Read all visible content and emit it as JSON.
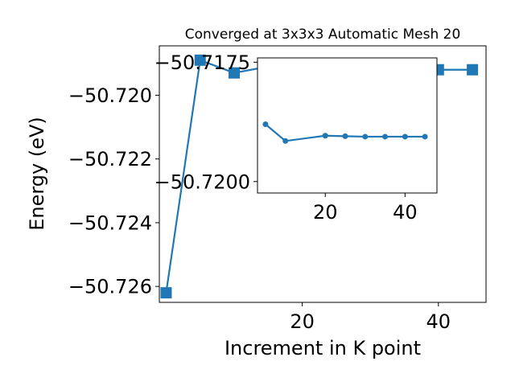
{
  "chart_data": [
    {
      "type": "line",
      "title": "Converged at 3x3x3 Automatic Mesh 20",
      "xlabel": "Increment in K point",
      "ylabel": "Energy (eV)",
      "x": [
        0,
        5,
        10,
        15,
        20,
        25,
        30,
        35,
        40,
        45
      ],
      "series": [
        {
          "values": [
            -50.7262,
            -50.7189,
            -50.7193,
            -50.7191,
            -50.7192,
            -50.7192,
            -50.7192,
            -50.7192,
            -50.7192,
            -50.7192
          ]
        }
      ],
      "xlim": [
        -1,
        47
      ],
      "ylim": [
        -50.7265,
        -50.71845
      ],
      "xticks": [
        20,
        40
      ],
      "xtick_labels": [
        "20",
        "40"
      ],
      "yticks": [
        -50.72,
        -50.722,
        -50.724,
        -50.726
      ],
      "ytick_labels": [
        "−50.720",
        "−50.722",
        "−50.724",
        "−50.726"
      ],
      "marker": "square",
      "color": "#1f77b4",
      "grid": false
    },
    {
      "type": "line",
      "role": "inset",
      "x": [
        5,
        10,
        20,
        25,
        30,
        35,
        40,
        45
      ],
      "series": [
        {
          "values": [
            -50.7188,
            -50.71915,
            -50.71904,
            -50.71905,
            -50.71906,
            -50.71906,
            -50.71906,
            -50.71906
          ]
        }
      ],
      "xlim": [
        3,
        48
      ],
      "ylim": [
        -50.72024,
        -50.71741
      ],
      "xticks": [
        20,
        40
      ],
      "xtick_labels": [
        "20",
        "40"
      ],
      "yticks": [
        -50.72,
        -50.7175
      ],
      "ytick_labels": [
        "−50.7200",
        "−50.7175"
      ],
      "marker": "circle",
      "color": "#1f77b4",
      "grid": false
    }
  ]
}
